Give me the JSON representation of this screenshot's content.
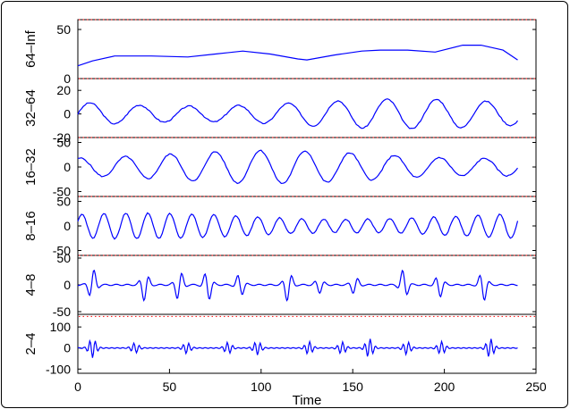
{
  "chart_data": {
    "type": "line",
    "xlabel": "Time",
    "xlim": [
      0,
      250
    ],
    "xticks": [
      0,
      50,
      100,
      150,
      200,
      250
    ],
    "line_color": "#0000ff",
    "dotted_color": "#ff0000",
    "panels": [
      {
        "label": "64–Inf",
        "ylim": [
          0,
          60
        ],
        "yticks": [
          0,
          50
        ],
        "dotted_at": 60,
        "series": {
          "name": "64–Inf",
          "x": [
            0,
            8,
            20,
            40,
            60,
            75,
            90,
            105,
            120,
            125,
            140,
            155,
            165,
            180,
            195,
            210,
            220,
            232,
            240
          ],
          "y": [
            13,
            18,
            23,
            23,
            22,
            25,
            28,
            25,
            20,
            19,
            24,
            28,
            29,
            29,
            27,
            34,
            34,
            29,
            19
          ]
        }
      },
      {
        "label": "32–64",
        "ylim": [
          -20,
          30
        ],
        "yticks": [
          -20,
          0,
          20
        ],
        "dotted_at": 30,
        "series": {
          "name": "32–64",
          "mode": "sine",
          "amp": 12,
          "period": 27,
          "phase": 0,
          "offset": 0,
          "seed": 3
        }
      },
      {
        "label": "16–32",
        "ylim": [
          -60,
          60
        ],
        "yticks": [
          -50,
          0,
          50
        ],
        "dotted_at": 60,
        "series": {
          "name": "16–32",
          "mode": "sine",
          "amp": 32,
          "period": 24.5,
          "phase": 1.2,
          "offset": 0,
          "seed": 5
        }
      },
      {
        "label": "8–16",
        "ylim": [
          -60,
          60
        ],
        "yticks": [
          -50,
          0,
          50
        ],
        "dotted_at": 60,
        "series": {
          "name": "8–16",
          "mode": "sine",
          "amp": 25,
          "period": 12,
          "phase": 0.4,
          "offset": 0,
          "seed": 7
        }
      },
      {
        "label": "4–8",
        "ylim": [
          -55,
          55
        ],
        "yticks": [
          -50,
          0,
          50
        ],
        "dotted_at": 55,
        "series": {
          "name": "4–8",
          "mode": "bursts",
          "amp": 30,
          "period": 6,
          "seed": 11
        }
      },
      {
        "label": "2–4",
        "ylim": [
          -120,
          160
        ],
        "yticks": [
          -100,
          0,
          100
        ],
        "dotted_at": 150,
        "series": {
          "name": "2–4",
          "mode": "bursts",
          "amp": 45,
          "period": 3,
          "seed": 13
        }
      }
    ]
  }
}
